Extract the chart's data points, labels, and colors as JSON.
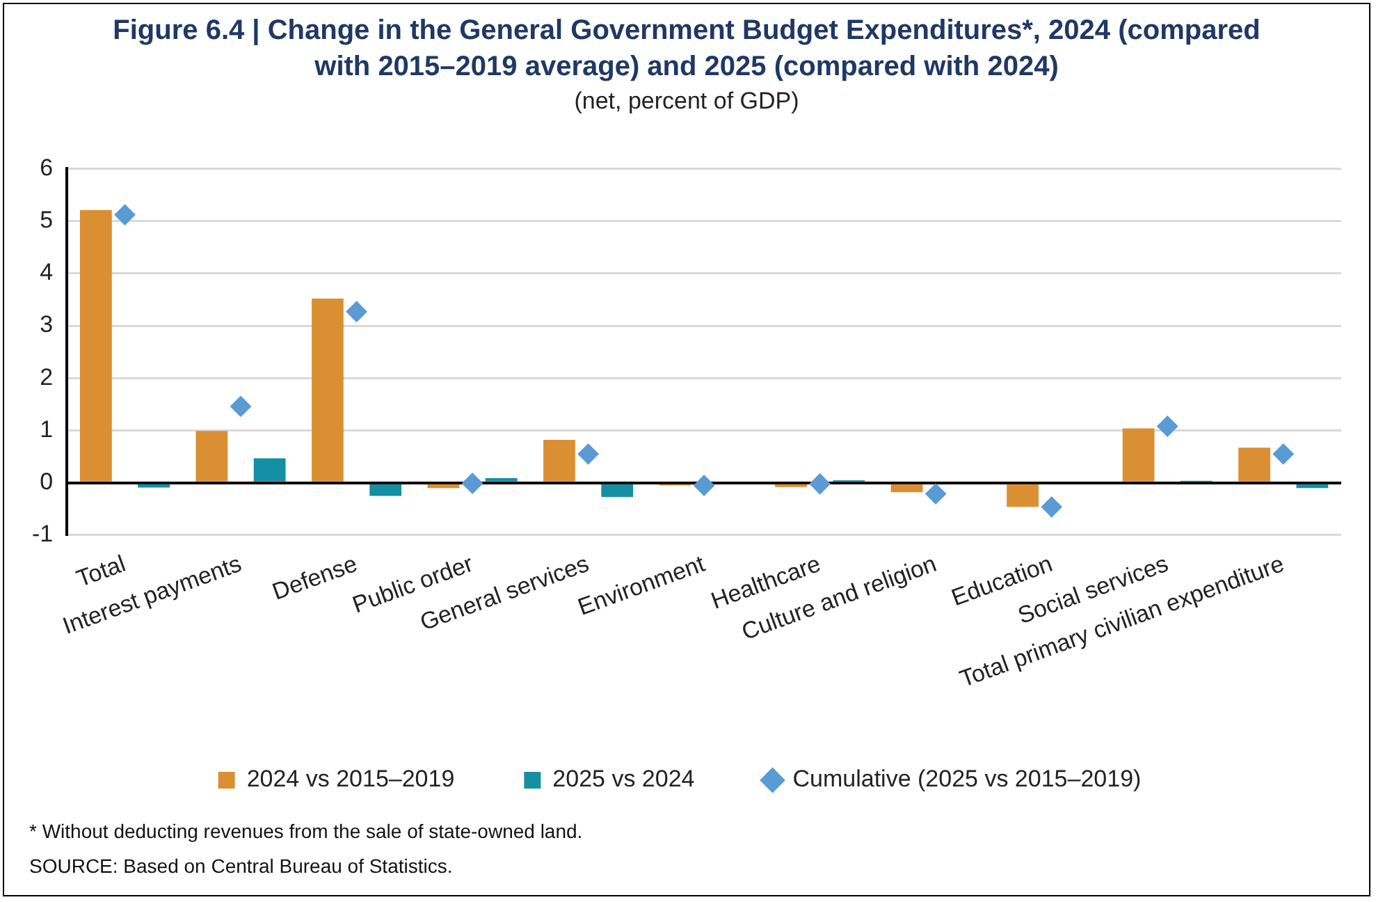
{
  "chart_data": {
    "type": "bar",
    "title": "Figure 6.4 | Change in the General Government Budget Expenditures*, 2024 (compared with 2015–2019 average) and 2025 (compared with 2024)",
    "subtitle": "(net, percent of GDP)",
    "categories": [
      "Total",
      "Interest payments",
      "Defense",
      "Public order",
      "General services",
      "Environment",
      "Healthcare",
      "Culture and religion",
      "Education",
      "Social services",
      "Total primary civilian expenditure"
    ],
    "series": [
      {
        "name": "2024 vs 2015–2019",
        "color": "#db8f33",
        "values": [
          5.21,
          0.99,
          3.52,
          -0.1,
          0.82,
          -0.05,
          -0.08,
          -0.18,
          -0.46,
          1.04,
          0.67
        ]
      },
      {
        "name": "2025 vs 2024",
        "color": "#148fa3",
        "values": [
          -0.09,
          0.47,
          -0.25,
          0.09,
          -0.27,
          0,
          0.05,
          0,
          0,
          0.04,
          -0.1
        ]
      },
      {
        "name": "Cumulative (2025 vs 2015–2019)",
        "type": "scatter",
        "marker": "diamond",
        "color": "#5b9bd5",
        "values": [
          5.12,
          1.46,
          3.27,
          -0.01,
          0.55,
          -0.05,
          -0.02,
          -0.21,
          -0.46,
          1.08,
          0.55
        ]
      }
    ],
    "ylim": [
      -1,
      6
    ],
    "yticks": [
      -1,
      0,
      1,
      2,
      3,
      4,
      5,
      6
    ],
    "grid": "y",
    "legend": "bottom",
    "annotations": [
      "* Without deducting revenues from the sale of state-owned land.",
      "SOURCE: Based on Central Bureau of Statistics."
    ]
  }
}
